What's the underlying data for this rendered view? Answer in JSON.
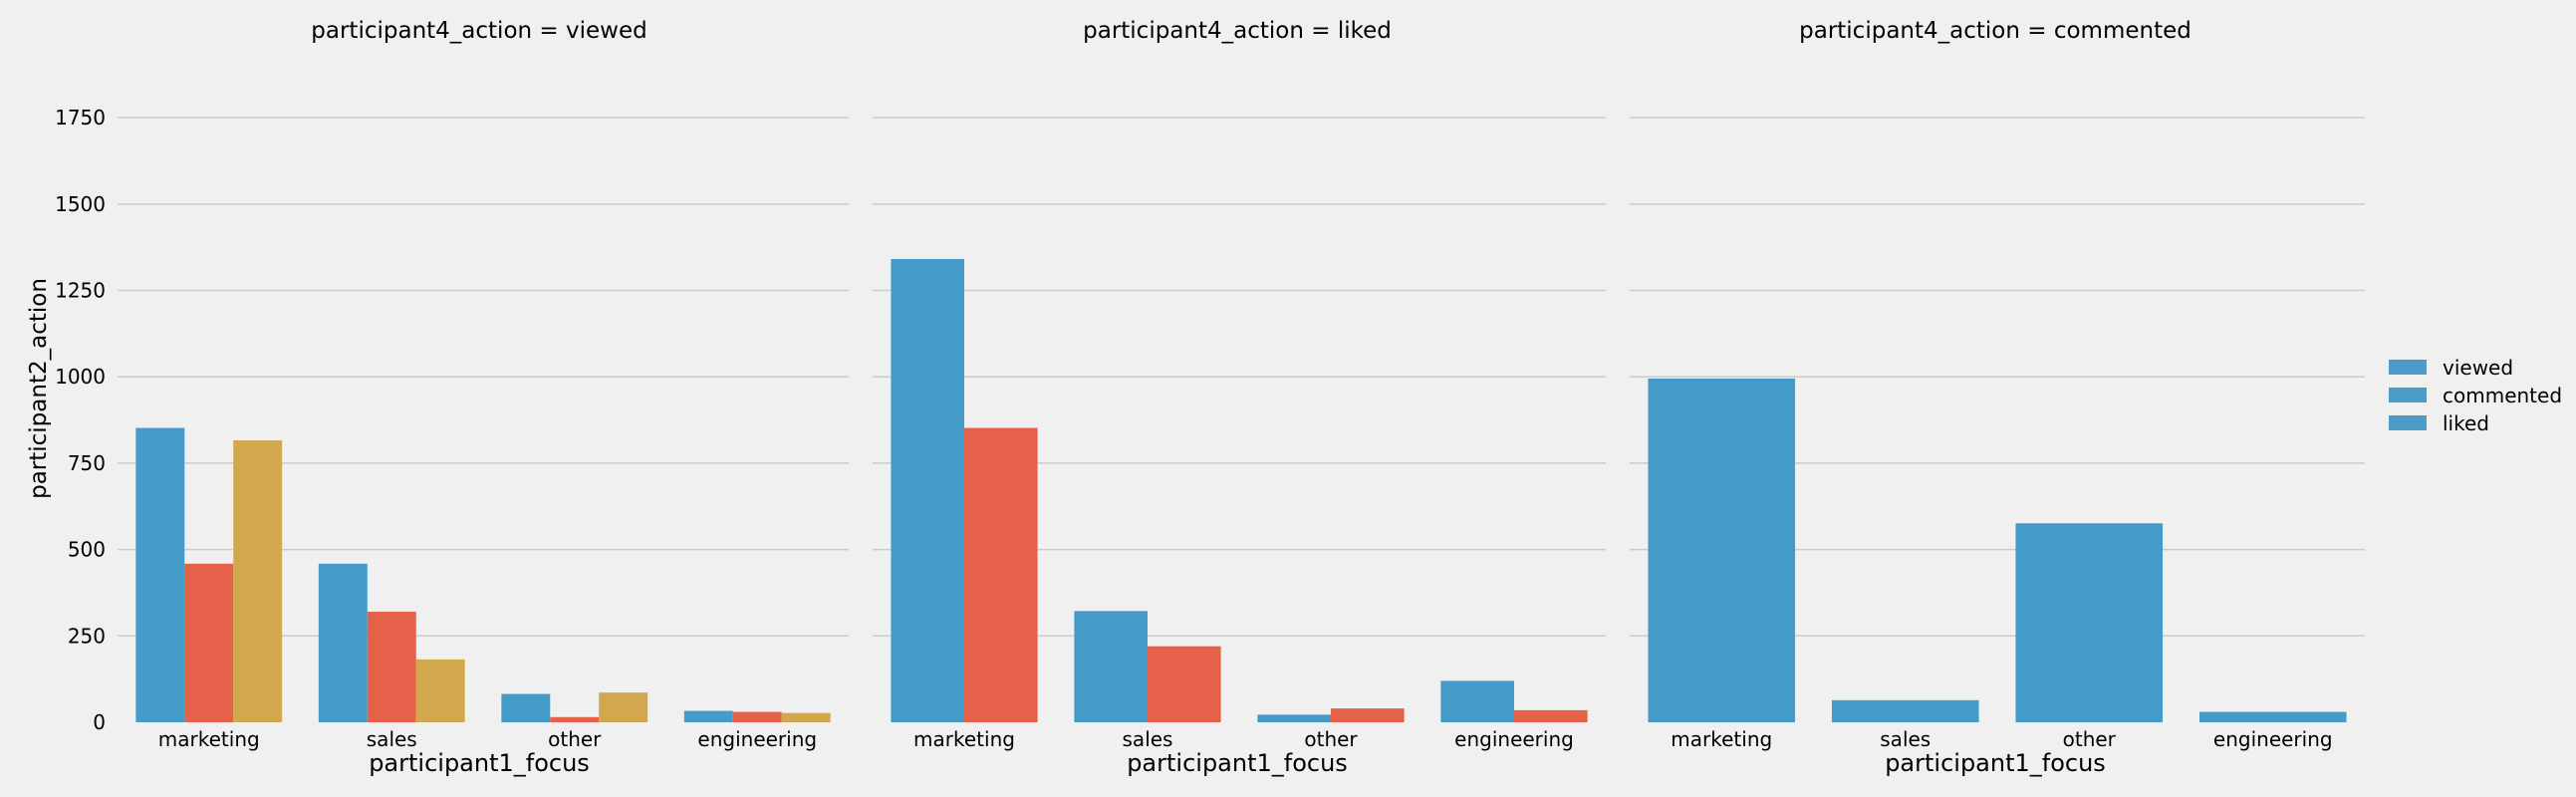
{
  "chart_data": {
    "type": "bar",
    "categories": [
      "marketing",
      "sales",
      "other",
      "engineering"
    ],
    "xlabel": "participant1_focus",
    "ylabel": "participant2_action",
    "ylim": [
      0,
      1860
    ],
    "yticks": [
      0,
      250,
      500,
      750,
      1000,
      1250,
      1500,
      1750
    ],
    "grid": true,
    "legend": {
      "placement": "right",
      "entries": [
        "viewed",
        "commented",
        "liked"
      ],
      "colors": [
        "#4a9bc8",
        "#4a9bc8",
        "#4a9bc8"
      ]
    },
    "series_colors": [
      "#449bc8",
      "#e5614a",
      "#d2a84e"
    ],
    "panels": [
      {
        "title": "participant4_action = viewed",
        "series": [
          {
            "values": [
              852,
              459,
              82,
              33
            ]
          },
          {
            "values": [
              459,
              320,
              15,
              30
            ]
          },
          {
            "values": [
              816,
              182,
              86,
              27
            ]
          }
        ]
      },
      {
        "title": "participant4_action = liked",
        "series": [
          {
            "values": [
              1341,
              322,
              22,
              120
            ]
          },
          {
            "values": [
              852,
              220,
              40,
              35
            ]
          }
        ]
      },
      {
        "title": "participant4_action = commented",
        "series": [
          {
            "values": [
              995,
              64,
              576,
              30
            ]
          }
        ]
      }
    ]
  }
}
